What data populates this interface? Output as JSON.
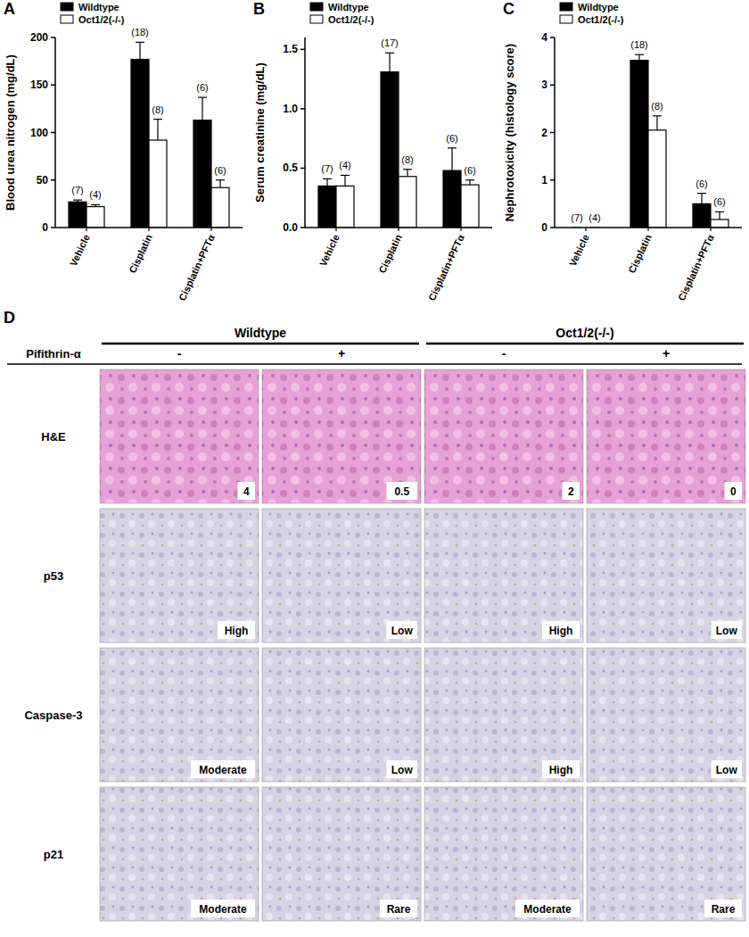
{
  "chart_data": [
    {
      "type": "bar",
      "panel": "A",
      "y_label": "Blood urea nitrogen (mg/dL)",
      "categories": [
        "Vehicle",
        "Cisplatin",
        "Cisplatin+PFTα"
      ],
      "series": [
        {
          "name": "Wildtype",
          "color": "#000000",
          "values": [
            27,
            177,
            113
          ],
          "errors": [
            2,
            18,
            24
          ],
          "n_labels": [
            "(7)",
            "(18)",
            "(6)"
          ]
        },
        {
          "name": "Oct1/2(-/-)",
          "color": "#ffffff",
          "values": [
            22,
            92,
            42
          ],
          "errors": [
            2,
            22,
            8
          ],
          "n_labels": [
            "(4)",
            "(8)",
            "(6)"
          ]
        }
      ],
      "ylim": [
        0,
        200
      ],
      "yticks": [
        0,
        50,
        100,
        150,
        200
      ],
      "legend": "top-left"
    },
    {
      "type": "bar",
      "panel": "B",
      "y_label": "Serum creatinine (mg/dL)",
      "categories": [
        "Vehicle",
        "Cisplatin",
        "Cisplatin+PFTα"
      ],
      "series": [
        {
          "name": "Wildtype",
          "color": "#000000",
          "values": [
            0.35,
            1.31,
            0.48
          ],
          "errors": [
            0.06,
            0.16,
            0.19
          ],
          "n_labels": [
            "(7)",
            "(17)",
            "(6)"
          ]
        },
        {
          "name": "Oct1/2(-/-)",
          "color": "#ffffff",
          "values": [
            0.35,
            0.43,
            0.36
          ],
          "errors": [
            0.09,
            0.06,
            0.04
          ],
          "n_labels": [
            "(4)",
            "(8)",
            "(6)"
          ]
        }
      ],
      "ylim": [
        0,
        1.6
      ],
      "yticks": [
        {
          "value": 0,
          "label": "0.0"
        },
        0.5,
        {
          "value": 1,
          "label": "1.0"
        },
        1.5
      ],
      "legend": "top-left"
    },
    {
      "type": "bar",
      "panel": "C",
      "y_label": "Nephrotoxicity (histology score)",
      "categories": [
        "Vehicle",
        "Cisplatin",
        "Cisplatin+PFTα"
      ],
      "series": [
        {
          "name": "Wildtype",
          "color": "#000000",
          "values": [
            0,
            3.52,
            0.5
          ],
          "errors": [
            0,
            0.12,
            0.22
          ],
          "n_labels": [
            "(7)",
            "(18)",
            "(6)"
          ]
        },
        {
          "name": "Oct1/2(-/-)",
          "color": "#ffffff",
          "values": [
            0,
            2.05,
            0.17
          ],
          "errors": [
            0,
            0.3,
            0.16
          ],
          "n_labels": [
            "(4)",
            "(8)",
            "(6)"
          ]
        }
      ],
      "ylim": [
        0,
        4
      ],
      "yticks": [
        0,
        1,
        2,
        3,
        4
      ],
      "legend": "top-left"
    }
  ],
  "panel_d": {
    "label": "D",
    "groups": [
      "Wildtype",
      "Oct1/2(-/-)"
    ],
    "treatment": "Pifithrin-α",
    "treatment_levels": [
      "-",
      "+",
      "-",
      "+"
    ],
    "rows": [
      {
        "name": "H&E",
        "labels": [
          4,
          0.5,
          2,
          0
        ]
      },
      {
        "name": "p53",
        "labels": [
          "High",
          "Low",
          "High",
          "Low"
        ]
      },
      {
        "name": "Caspase-3",
        "labels": [
          "Moderate",
          "Low",
          "High",
          "Low"
        ]
      },
      {
        "name": "p21",
        "labels": [
          "Moderate",
          "Rare",
          "Moderate",
          "Rare"
        ]
      }
    ]
  }
}
